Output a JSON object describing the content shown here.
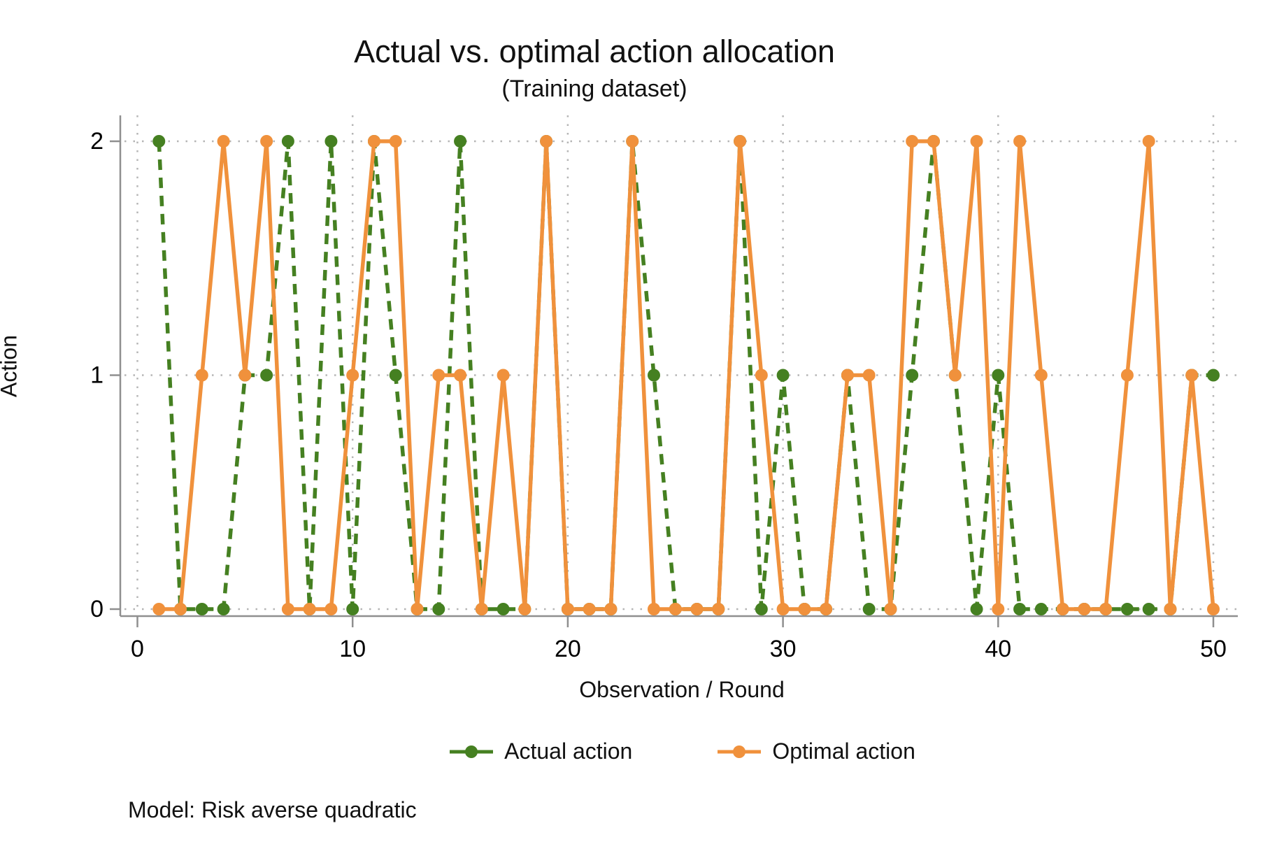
{
  "chart_data": {
    "type": "line",
    "title": "Actual vs. optimal action allocation",
    "subtitle": "(Training dataset)",
    "xlabel": "Observation / Round",
    "ylabel": "Action",
    "ylim": [
      0,
      2
    ],
    "xlim": [
      0,
      50
    ],
    "xticks": [
      "0",
      "10",
      "20",
      "30",
      "40",
      "50"
    ],
    "xtick_values": [
      0,
      10,
      20,
      30,
      40,
      50
    ],
    "yticks": [
      "0",
      "1",
      "2"
    ],
    "ytick_values": [
      0,
      1,
      2
    ],
    "grid": "dotted",
    "legend_position": "bottom",
    "x": [
      1,
      2,
      3,
      4,
      5,
      6,
      7,
      8,
      9,
      10,
      11,
      12,
      13,
      14,
      15,
      16,
      17,
      18,
      19,
      20,
      21,
      22,
      23,
      24,
      25,
      26,
      27,
      28,
      29,
      30,
      31,
      32,
      33,
      34,
      35,
      36,
      37,
      38,
      39,
      40,
      41,
      42,
      43,
      44,
      45,
      46,
      47,
      48,
      49,
      50
    ],
    "series": [
      {
        "name": "Actual action",
        "style": "dashed",
        "color": "#458021",
        "values": [
          2,
          0,
          0,
          0,
          1,
          1,
          2,
          0,
          2,
          0,
          2,
          1,
          0,
          0,
          2,
          0,
          0,
          0,
          2,
          0,
          0,
          0,
          2,
          1,
          0,
          0,
          0,
          2,
          0,
          1,
          0,
          0,
          1,
          0,
          0,
          1,
          2,
          1,
          0,
          1,
          0,
          0,
          0,
          0,
          0,
          0,
          0,
          0,
          1,
          1
        ]
      },
      {
        "name": "Optimal action",
        "style": "solid",
        "color": "#F0913C",
        "values": [
          0,
          0,
          1,
          2,
          1,
          2,
          0,
          0,
          0,
          1,
          2,
          2,
          0,
          1,
          1,
          0,
          1,
          0,
          2,
          0,
          0,
          0,
          2,
          0,
          0,
          0,
          0,
          2,
          1,
          0,
          0,
          0,
          1,
          1,
          0,
          2,
          2,
          1,
          2,
          0,
          2,
          1,
          0,
          0,
          0,
          1,
          2,
          0,
          1,
          0
        ]
      }
    ]
  },
  "footnote": "Model: Risk averse quadratic",
  "colors": {
    "actual": "#458021",
    "optimal": "#F0913C",
    "grid": "#b5b5b5",
    "axis": "#8f8f8f",
    "text": "#000000"
  }
}
